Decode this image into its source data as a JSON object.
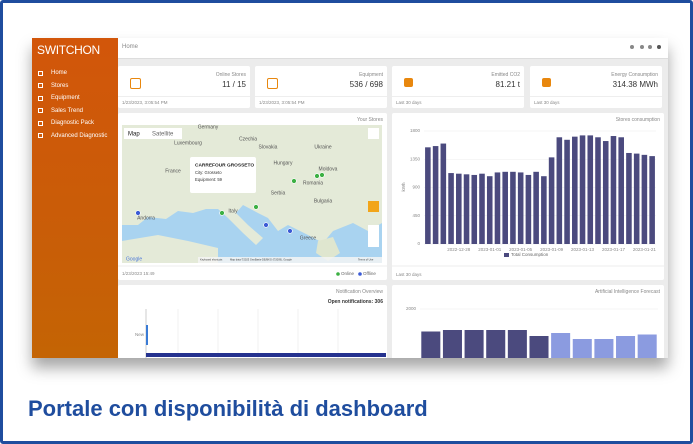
{
  "frame": {
    "caption": "Portale con disponibilità di dashboard"
  },
  "sidebar": {
    "logo": "SWITCHON",
    "menu": [
      "Home",
      "Stores",
      "Equipment",
      "Sales Trend",
      "Diagnostic Pack",
      "Advanced Diagnostic"
    ]
  },
  "topbar": {
    "page": "Home"
  },
  "cards": [
    {
      "label": "Online Stores",
      "value": "11 / 15",
      "footer": "1/23/2023, 3:05:54 PM"
    },
    {
      "label": "Equipment",
      "value": "536 / 698",
      "footer": "1/23/2023, 3:05:54 PM"
    },
    {
      "label": "Emitted CO2",
      "value": "81.21 t",
      "footer": "Last 30 days"
    },
    {
      "label": "Energy Consumption",
      "value": "314.38 MWh",
      "footer": "Last 30 days"
    }
  ],
  "map": {
    "title": "Your Stores",
    "tabs": [
      "Map",
      "Satellite"
    ],
    "labels": [
      "Germany",
      "Czechia",
      "Slovakia",
      "Ukraine",
      "Luxembourg",
      "France",
      "Hungary",
      "Moldova",
      "Romania",
      "Serbia",
      "Bulgaria",
      "Italy",
      "Andorra",
      "Greece"
    ],
    "popup": {
      "title": "CARREFOUR GROSSETO",
      "lines": [
        "City: Grosseto",
        "Equipment: 59"
      ]
    },
    "attribution": [
      "Google",
      "Keyboard shortcuts",
      "Map data ©2023 GeoBasis-DE/BKG (©2009), Google",
      "Terms of Use"
    ],
    "footer": "1/23/2023 15:49",
    "legend": [
      "Online",
      "Offline"
    ]
  },
  "consumption": {
    "type": "bar",
    "title": "Stores consumption",
    "y_label": "kWh",
    "categories": [
      null,
      null,
      null,
      null,
      "2022-12-28",
      null,
      null,
      null,
      "2023-01-01",
      null,
      null,
      null,
      "2023-01-05",
      null,
      null,
      null,
      "2023-01-09",
      null,
      null,
      null,
      "2023-01-13",
      null,
      null,
      null,
      "2023-01-17",
      null,
      null,
      null,
      "2023-01-21",
      null
    ],
    "series": [
      {
        "name": "Total Consumption",
        "color": "#4b4a7e",
        "values": [
          1540,
          1560,
          1600,
          1130,
          1120,
          1110,
          1100,
          1120,
          1080,
          1140,
          1150,
          1150,
          1140,
          1100,
          1150,
          1080,
          1380,
          1700,
          1660,
          1710,
          1730,
          1730,
          1700,
          1640,
          1720,
          1700,
          1450,
          1440,
          1420,
          1400
        ]
      }
    ],
    "ylim": [
      0,
      1800
    ],
    "yticks": [
      0,
      450,
      900,
      1350,
      1800
    ],
    "footer": "Last 30 days"
  },
  "notifications": {
    "title": "Notification Overview",
    "summary": "Open notifications: 306",
    "categories": [
      "New"
    ]
  },
  "forecast": {
    "type": "bar",
    "title": "Artificial Intelligence Forecast",
    "values": [
      1850,
      1860,
      1860,
      1860,
      1860,
      1820,
      1840,
      1800,
      1800,
      1820,
      1830
    ],
    "colors": [
      "#4b4a7e",
      "#4b4a7e",
      "#4b4a7e",
      "#4b4a7e",
      "#4b4a7e",
      "#4b4a7e",
      "#8b9be0",
      "#8b9be0",
      "#8b9be0",
      "#8b9be0",
      "#8b9be0"
    ],
    "ylim": [
      1300,
      2100
    ],
    "yticks": [
      1600,
      2000
    ]
  }
}
